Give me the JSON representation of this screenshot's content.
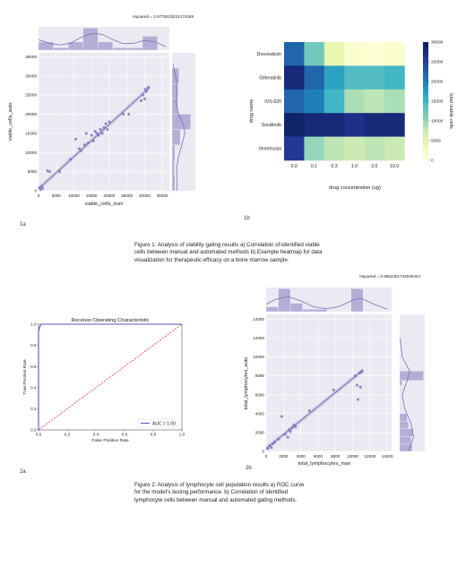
{
  "figure_labels": {
    "p1a": "1a",
    "p1b": "1b",
    "p2a": "2a",
    "p2b": "2b"
  },
  "captions": {
    "fig1": "Figure 1: Analysis of viability gating results a) Correlation of identified viable cells between manual and automated methods b) Example heatmap for data visualization for therapeutic efficacy on a bone marrow sample.",
    "fig2": "Figure 2: Analysis of lymphocyte cell population results a) ROC curve for the model's testing performance. b) Correlation of identified lymphocyte cells between manual and automated gating methods."
  },
  "colors": {
    "series": "#7b72b5",
    "hist_fill": "#b3aed6",
    "roc_line": "#5a50c0",
    "diag": "#e0342a"
  },
  "chart_data": [
    {
      "id": "viable",
      "type": "scatter",
      "title": "rsquared = 0.9779103222174289",
      "xlabel": "viable_cells_man",
      "ylabel": "viable_cells_auto",
      "xlim": [
        0,
        37000
      ],
      "ylim": [
        0,
        36000
      ],
      "xticks": [
        0,
        5000,
        10000,
        15000,
        20000,
        25000,
        30000,
        35000
      ],
      "yticks": [
        0,
        5000,
        10000,
        15000,
        20000,
        25000,
        30000,
        35000
      ],
      "grid": true,
      "regression": [
        [
          0,
          500
        ],
        [
          31500,
          27000
        ]
      ],
      "points": [
        [
          300,
          800
        ],
        [
          600,
          300
        ],
        [
          900,
          1200
        ],
        [
          1200,
          600
        ],
        [
          2500,
          5200
        ],
        [
          3200,
          5000
        ],
        [
          6000,
          5000
        ],
        [
          9000,
          8200
        ],
        [
          10500,
          13500
        ],
        [
          11500,
          11000
        ],
        [
          12000,
          10500
        ],
        [
          13000,
          12000
        ],
        [
          13500,
          15000
        ],
        [
          14000,
          12500
        ],
        [
          15000,
          14500
        ],
        [
          15500,
          13000
        ],
        [
          16000,
          15500
        ],
        [
          16500,
          15000
        ],
        [
          17000,
          14500
        ],
        [
          17500,
          16000
        ],
        [
          18000,
          15000
        ],
        [
          18500,
          16500
        ],
        [
          19000,
          17500
        ],
        [
          19500,
          16000
        ],
        [
          20000,
          18000
        ],
        [
          24000,
          20000
        ],
        [
          25500,
          20000
        ],
        [
          29000,
          23500
        ],
        [
          29500,
          25000
        ],
        [
          30000,
          24000
        ],
        [
          30500,
          26000
        ],
        [
          31000,
          27000
        ],
        [
          30200,
          26500
        ]
      ],
      "top_hist": {
        "bins": [
          [
            0,
            4200,
            0.35
          ],
          [
            4200,
            8400,
            0.1
          ],
          [
            8400,
            12600,
            0.35
          ],
          [
            12600,
            16800,
            0.95
          ],
          [
            16800,
            21000,
            0.35
          ],
          [
            21000,
            25200,
            0.1
          ],
          [
            25200,
            29400,
            0.1
          ],
          [
            29400,
            33600,
            0.6
          ]
        ],
        "kde": [
          [
            0,
            0.45
          ],
          [
            3000,
            0.3
          ],
          [
            6000,
            0.22
          ],
          [
            9000,
            0.3
          ],
          [
            12000,
            0.55
          ],
          [
            15000,
            0.72
          ],
          [
            18000,
            0.68
          ],
          [
            21000,
            0.45
          ],
          [
            24000,
            0.28
          ],
          [
            27000,
            0.3
          ],
          [
            30000,
            0.42
          ],
          [
            33000,
            0.35
          ],
          [
            36000,
            0.15
          ]
        ]
      },
      "right_hist": {
        "bins": [
          [
            0,
            4000,
            0.12
          ],
          [
            4000,
            8000,
            0.1
          ],
          [
            8000,
            12000,
            0.12
          ],
          [
            12000,
            16000,
            0.35
          ],
          [
            16000,
            20000,
            0.8
          ],
          [
            20000,
            24000,
            0.25
          ],
          [
            24000,
            28000,
            0.25
          ],
          [
            28000,
            32000,
            0.3
          ]
        ],
        "kde": [
          [
            0,
            0.2
          ],
          [
            3000,
            0.22
          ],
          [
            6000,
            0.2
          ],
          [
            9000,
            0.28
          ],
          [
            12000,
            0.42
          ],
          [
            15000,
            0.55
          ],
          [
            17000,
            0.5
          ],
          [
            20000,
            0.28
          ],
          [
            23000,
            0.18
          ],
          [
            26000,
            0.22
          ],
          [
            29000,
            0.18
          ],
          [
            33000,
            0.05
          ]
        ]
      }
    },
    {
      "id": "heatmap",
      "type": "heatmap",
      "xlabel": "drug concentration (ug)",
      "ylabel": "drug name",
      "categories_x": [
        "0.0",
        "0.1",
        "0.3",
        "1.0",
        "3.0",
        "10.0"
      ],
      "categories_y": [
        "Doxorubicin",
        "Gilteratinib",
        "IVS-020",
        "Sorafenib",
        "Venetoclax"
      ],
      "values": [
        [
          22000,
          12000,
          4000,
          1000,
          500,
          1000
        ],
        [
          28000,
          22000,
          17000,
          14000,
          14000,
          15000
        ],
        [
          22000,
          20000,
          15000,
          9000,
          8000,
          9000
        ],
        [
          29000,
          28000,
          28000,
          27000,
          28000,
          28000
        ],
        [
          26000,
          10000,
          8000,
          7000,
          8000,
          7000
        ]
      ],
      "colorbar": {
        "label": "total viable cells",
        "min": 0,
        "max": 30000,
        "ticks": [
          0,
          5000,
          10000,
          15000,
          20000,
          25000,
          30000
        ]
      }
    },
    {
      "id": "roc",
      "type": "line",
      "title": "Receiver Operating Characteristic",
      "xlabel": "False Positive Rate",
      "ylabel": "True Positive Rate",
      "xlim": [
        0,
        1
      ],
      "ylim": [
        0,
        1
      ],
      "xticks": [
        0.0,
        0.2,
        0.4,
        0.6,
        0.8,
        1.0
      ],
      "yticks": [
        0.0,
        0.2,
        0.4,
        0.6,
        0.8,
        1.0
      ],
      "series": [
        {
          "name": "AUC = 1.00",
          "points": [
            [
              0,
              0
            ],
            [
              0,
              0.93
            ],
            [
              0.005,
              0.96
            ],
            [
              0.01,
              0.98
            ],
            [
              0.02,
              1.0
            ],
            [
              1,
              1
            ]
          ]
        }
      ],
      "diagonal": [
        [
          0,
          0
        ],
        [
          1,
          1
        ]
      ],
      "legend": "lower-right"
    },
    {
      "id": "lymph",
      "type": "scatter",
      "title": "rsquared = 0.9662301733045444",
      "xlabel": "total_lymphocytes_man",
      "ylabel": "total_lymphocytes_auto",
      "xlim": [
        0,
        14500
      ],
      "ylim": [
        0,
        14500
      ],
      "xticks": [
        0,
        2000,
        4000,
        6000,
        8000,
        10000,
        12000,
        14000
      ],
      "yticks": [
        0,
        2000,
        4000,
        6000,
        8000,
        10000,
        12000,
        14000
      ],
      "grid": true,
      "regression": [
        [
          0,
          300
        ],
        [
          11200,
          8600
        ]
      ],
      "points": [
        [
          200,
          300
        ],
        [
          400,
          600
        ],
        [
          600,
          400
        ],
        [
          800,
          800
        ],
        [
          1000,
          1000
        ],
        [
          1400,
          1300
        ],
        [
          1800,
          3700
        ],
        [
          2200,
          1800
        ],
        [
          2500,
          1500
        ],
        [
          2700,
          2300
        ],
        [
          2800,
          2100
        ],
        [
          3000,
          2500
        ],
        [
          3200,
          2800
        ],
        [
          3400,
          2600
        ],
        [
          5000,
          4300
        ],
        [
          7800,
          6500
        ],
        [
          10300,
          8000
        ],
        [
          10500,
          7000
        ],
        [
          10600,
          5500
        ],
        [
          10800,
          8300
        ],
        [
          10900,
          6800
        ],
        [
          11000,
          8400
        ],
        [
          11100,
          8500
        ]
      ],
      "top_hist": {
        "bins": [
          [
            0,
            1400,
            0.2
          ],
          [
            1400,
            2800,
            0.95
          ],
          [
            2800,
            4200,
            0.35
          ],
          [
            4200,
            5600,
            0.1
          ],
          [
            5600,
            7000,
            0.1
          ],
          [
            7000,
            8400,
            0.0
          ],
          [
            8400,
            9800,
            0.0
          ],
          [
            9800,
            11200,
            0.95
          ]
        ],
        "kde": [
          [
            0,
            0.3
          ],
          [
            1000,
            0.5
          ],
          [
            2500,
            0.62
          ],
          [
            4000,
            0.45
          ],
          [
            5500,
            0.2
          ],
          [
            7000,
            0.12
          ],
          [
            8500,
            0.22
          ],
          [
            10000,
            0.48
          ],
          [
            11000,
            0.55
          ],
          [
            12500,
            0.3
          ],
          [
            14000,
            0.1
          ]
        ]
      },
      "right_hist": {
        "bins": [
          [
            0,
            800,
            0.5
          ],
          [
            800,
            1600,
            0.45
          ],
          [
            1600,
            2400,
            0.55
          ],
          [
            2400,
            3200,
            0.35
          ],
          [
            3200,
            4000,
            0.3
          ],
          [
            4000,
            7000,
            0.0
          ],
          [
            7000,
            7500,
            0.1
          ],
          [
            7500,
            8500,
            0.95
          ]
        ],
        "kde": [
          [
            0,
            0.35
          ],
          [
            1500,
            0.55
          ],
          [
            3000,
            0.45
          ],
          [
            4500,
            0.2
          ],
          [
            6000,
            0.1
          ],
          [
            7500,
            0.3
          ],
          [
            8500,
            0.4
          ],
          [
            10000,
            0.1
          ],
          [
            12000,
            0.02
          ]
        ]
      }
    }
  ]
}
